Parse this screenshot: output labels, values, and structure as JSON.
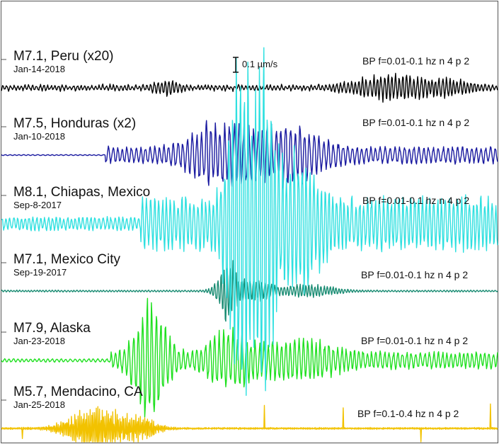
{
  "chart_data": {
    "type": "line",
    "title": "",
    "xlabel": "",
    "ylabel": "",
    "grid": false,
    "legend": "none",
    "scale_bar_label": "0.1 µm/s",
    "series": [
      {
        "name": "M7.1, Peru (x20)",
        "date": "Jan-14-2018",
        "filter": "BP f=0.01-0.1 hz n 4 p 2",
        "color": "#000000",
        "peak_amplitude_um_s": 0.08,
        "onset_frac": 0.0
      },
      {
        "name": "M7.5, Honduras (x2)",
        "date": "Jan-10-2018",
        "filter": "BP f=0.01-0.1 hz n 4 p 2",
        "color": "#1a1aa0",
        "peak_amplitude_um_s": 0.18,
        "onset_frac": 0.21
      },
      {
        "name": "M8.1, Chiapas, Mexico",
        "date": "Sep-8-2017",
        "filter": "BP f=0.01-0.1 hz n 4 p 2",
        "color": "#2fe0e0",
        "peak_amplitude_um_s": 1.25,
        "onset_frac": 0.05
      },
      {
        "name": "M7.1, Mexico City",
        "date": "Sep-19-2017",
        "filter": "BP f=0.01-0.1 hz n 4 p 2",
        "color": "#1a8c73",
        "peak_amplitude_um_s": 0.22,
        "onset_frac": 0.4
      },
      {
        "name": "M7.9, Alaska",
        "date": "Jan-23-2018",
        "filter": "BP f=0.01-0.1 hz n 4 p 2",
        "color": "#1fe01f",
        "peak_amplitude_um_s": 0.42,
        "onset_frac": 0.22
      },
      {
        "name": "M5.7, Mendacino, CA",
        "date": "Jan-25-2018",
        "filter": "BP f=0.1-0.4 hz n 4 p 2",
        "color": "#f2c200",
        "peak_amplitude_um_s": 0.18,
        "onset_frac": 0.1
      }
    ]
  }
}
